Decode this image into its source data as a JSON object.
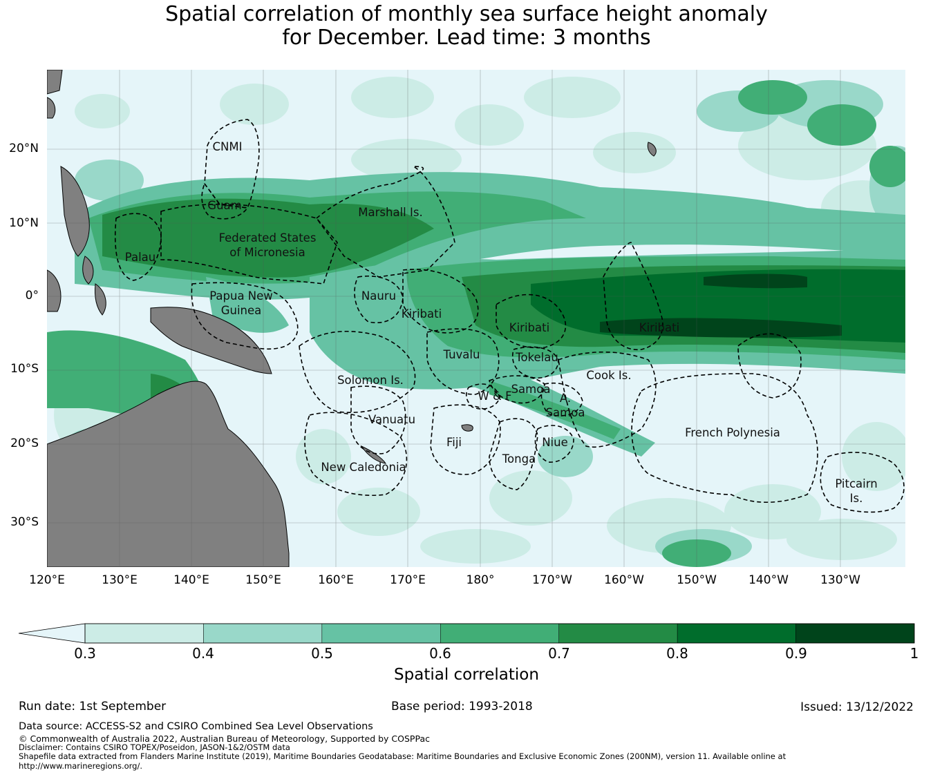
{
  "title": {
    "line1": "Spatial correlation of monthly sea surface height anomaly",
    "line2": "for December. Lead time: 3 months"
  },
  "map": {
    "lat_labels": [
      "20°N",
      "10°N",
      "0°",
      "10°S",
      "20°S",
      "30°S"
    ],
    "lon_labels": [
      "120°E",
      "130°E",
      "140°E",
      "150°E",
      "160°E",
      "170°E",
      "180°",
      "170°W",
      "160°W",
      "150°W",
      "140°W",
      "130°W"
    ],
    "colors": {
      "ocean": "#e5f5f9",
      "land": "#808080",
      "c03": "#ccece6",
      "c04": "#99d8c9",
      "c05": "#66c2a4",
      "c06": "#41ae76",
      "c07": "#238b45",
      "c08": "#006d2c",
      "c09": "#00441b"
    },
    "regions": [
      {
        "name": "CNMI"
      },
      {
        "name": "Guam"
      },
      {
        "name": "Marshall Is."
      },
      {
        "name": "Federated States"
      },
      {
        "name": "of Micronesia"
      },
      {
        "name": "Palau"
      },
      {
        "name": "Papua New"
      },
      {
        "name": "Guinea"
      },
      {
        "name": "Nauru"
      },
      {
        "name": "Kiribati"
      },
      {
        "name": "Kiribati"
      },
      {
        "name": "Kiribati"
      },
      {
        "name": "Tuvalu"
      },
      {
        "name": "Tokelau"
      },
      {
        "name": "Cook Is."
      },
      {
        "name": "Solomon Is."
      },
      {
        "name": "Samoa"
      },
      {
        "name": "W & F"
      },
      {
        "name": "A."
      },
      {
        "name": "Samoa"
      },
      {
        "name": "Vanuatu"
      },
      {
        "name": "Fiji"
      },
      {
        "name": "Niue"
      },
      {
        "name": "Tonga"
      },
      {
        "name": "French Polynesia"
      },
      {
        "name": "New Caledonia"
      },
      {
        "name": "Pitcairn"
      },
      {
        "name": "Is."
      }
    ]
  },
  "colorbar": {
    "ticks": [
      "0.3",
      "0.4",
      "0.5",
      "0.6",
      "0.7",
      "0.8",
      "0.9",
      "1"
    ],
    "label": "Spatial correlation",
    "colors": [
      "#ccece6",
      "#99d8c9",
      "#66c2a4",
      "#41ae76",
      "#238b45",
      "#006d2c",
      "#00441b"
    ],
    "extend_color": "#e5f5f9"
  },
  "footer": {
    "run_date": "Run date: 1st September",
    "base_period": "Base period: 1993-2018",
    "issued": "Issued: 13/12/2022",
    "data_source": "Data source: ACCESS-S2 and CSIRO Combined Sea Level Observations",
    "copyright": "© Commonwealth of Australia 2022, Australian Bureau of Meteorology, Supported by COSPPac",
    "disclaimer": "Disclaimer: Contains CSIRO TOPEX/Poseidon, JASON-1&2/OSTM data",
    "shapefile": "Shapefile data extracted from Flanders Marine Institute (2019), Maritime Boundaries Geodatabase: Maritime Boundaries and Exclusive Economic Zones (200NM), version 11. Available online at",
    "url": "http://www.marineregions.org/."
  }
}
